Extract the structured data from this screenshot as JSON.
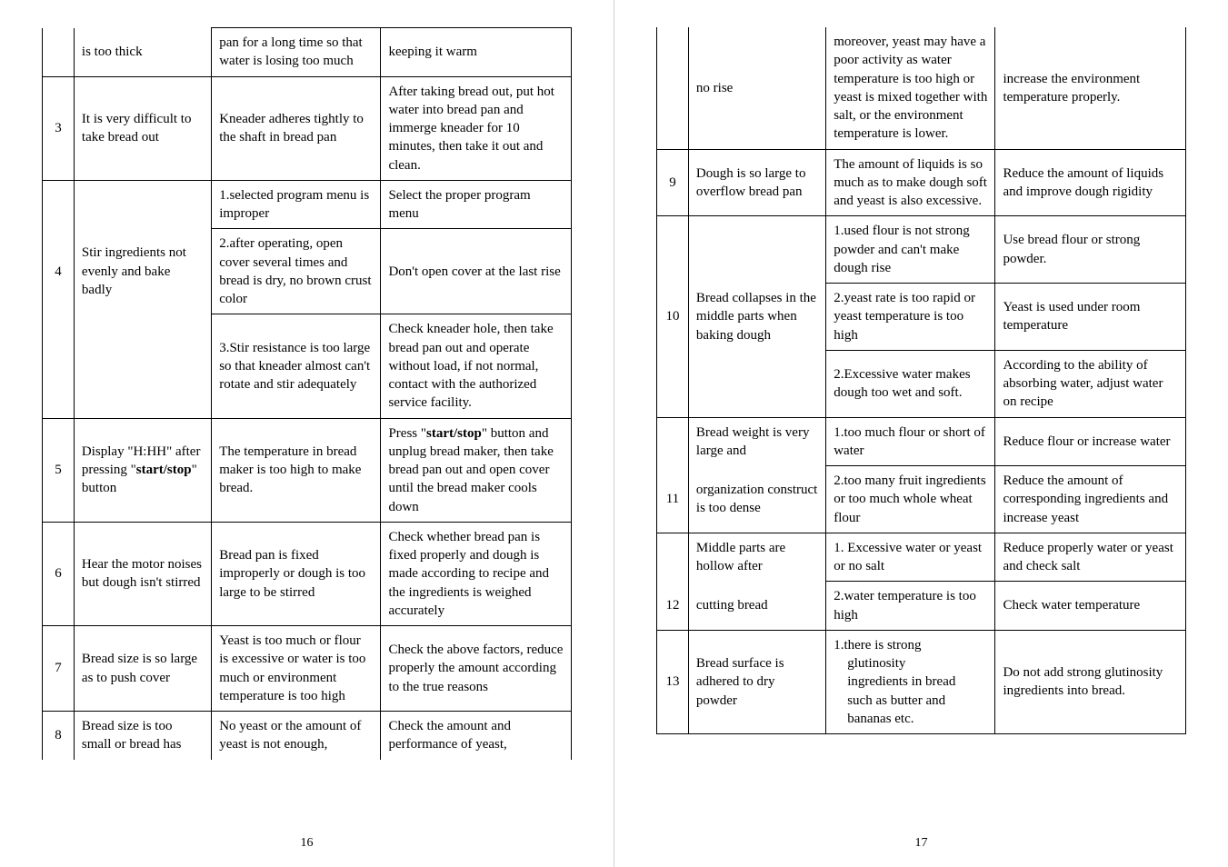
{
  "left": {
    "pageNumber": "16",
    "rows": [
      {
        "num": "",
        "problem": "is too thick",
        "cause": "pan for a long time so that water is losing too much",
        "solution": "keeping it warm",
        "numNoTop": true,
        "probNoTop": true
      },
      {
        "num": "3",
        "problem": "It is very difficult to take bread out",
        "cause": "Kneader adheres tightly to the shaft in bread pan",
        "solution": "After taking bread out, put hot water into bread pan and immerge kneader for 10 minutes, then take it out and clean."
      },
      {
        "num": "",
        "problem": "",
        "cause": "1.selected program menu is improper",
        "solution": "Select the proper program menu",
        "numNoBottom": true,
        "probNoBottom": true
      },
      {
        "num": "4",
        "problem": "Stir ingredients not evenly and bake badly",
        "cause": "2.after operating, open cover several times and bread is dry, no brown crust color",
        "solution": "Don't open cover at the last rise",
        "numNoTop": true,
        "numNoBottom": true,
        "probNoTop": true,
        "probNoBottom": true
      },
      {
        "num": "",
        "problem": "",
        "cause": "3.Stir resistance is too large so that kneader almost can't rotate and stir adequately",
        "solution": "Check kneader hole, then take bread pan out and operate without load, if not normal, contact with the authorized service facility.",
        "numNoTop": true,
        "probNoTop": true
      },
      {
        "num": "5",
        "problemHtml": "Display \"H:HH\" after pressing \"<b>start/stop</b>\" button",
        "cause": "The temperature in bread maker is too high to make bread.",
        "solutionHtml": "Press \"<b>start/stop</b>\" button and unplug bread maker, then take bread pan out and open cover until the bread maker cools down"
      },
      {
        "num": "6",
        "problem": "Hear the motor noises but dough isn't stirred",
        "cause": "Bread pan is fixed improperly or dough is too large to be stirred",
        "solution": "Check whether bread pan is fixed properly and dough is made according to recipe and the ingredients is weighed accurately"
      },
      {
        "num": "7",
        "problem": "Bread size is so large as to push cover",
        "cause": "Yeast is too much or flour is excessive or water is too much or environment temperature is too high",
        "solution": "Check the above factors, reduce properly the amount according to the true reasons"
      },
      {
        "num": "8",
        "problem": "Bread size is too small or bread has",
        "cause": "No yeast or the amount of yeast is not enough,",
        "solution": "Check the amount and performance of yeast,",
        "numNoBottom": true,
        "probNoBottom": true,
        "causeNoBottom": true,
        "solNoBottom": true
      }
    ]
  },
  "right": {
    "pageNumber": "17",
    "rows": [
      {
        "num": "",
        "problem": "no rise",
        "cause": "moreover, yeast may have a poor activity as water temperature is too high or yeast is mixed together with salt, or the environment temperature is lower.",
        "solution": "increase the environment temperature properly.",
        "numNoTop": true,
        "probNoTop": true,
        "causeNoTop": true,
        "solNoTop": true
      },
      {
        "num": "9",
        "problem": "Dough is so large to overflow bread pan",
        "cause": "The amount of liquids is so much as to make dough soft and yeast is also excessive.",
        "solution": "Reduce the amount of liquids and improve dough rigidity"
      },
      {
        "num": "",
        "problem": "",
        "cause": "1.used flour is not strong powder and can't make dough rise",
        "solution": "Use bread flour or strong powder.",
        "numNoBottom": true,
        "probNoBottom": true
      },
      {
        "num": "10",
        "problem": "Bread collapses in the middle parts when baking dough",
        "cause": "2.yeast rate is too rapid or yeast temperature is too high",
        "solution": "Yeast is used under room temperature",
        "numNoTop": true,
        "numNoBottom": true,
        "probNoTop": true,
        "probNoBottom": true
      },
      {
        "num": "",
        "problem": "",
        "cause": "2.Excessive water makes dough too wet and soft.",
        "solution": "According to the ability of absorbing water, adjust water on recipe",
        "numNoTop": true,
        "probNoTop": true
      },
      {
        "num": "",
        "problem": "Bread weight is very large and",
        "cause": "1.too much flour or short of water",
        "solution": "Reduce flour or increase water",
        "numNoBottom": true,
        "probNoBottom": true
      },
      {
        "num": "11",
        "problem": "organization construct is too dense",
        "cause": "2.too many fruit ingredients or too much whole wheat flour",
        "solution": "Reduce the amount of corresponding ingredients and increase yeast",
        "numNoTop": true,
        "probNoTop": true
      },
      {
        "num": "",
        "problem": "Middle parts are hollow after",
        "cause": "1. Excessive water or yeast or no salt",
        "solution": "Reduce properly water or yeast and check salt",
        "numNoBottom": true,
        "probNoBottom": true
      },
      {
        "num": "12",
        "problem": "cutting bread",
        "cause": "2.water temperature is too high",
        "solution": "Check water temperature",
        "numNoTop": true,
        "probNoTop": true
      },
      {
        "num": "13",
        "problem": "Bread surface is adhered to dry powder",
        "causeHtml": "1.there is strong<br>&nbsp;&nbsp;&nbsp;&nbsp;glutinosity<br>&nbsp;&nbsp;&nbsp;&nbsp;ingredients in bread<br>&nbsp;&nbsp;&nbsp;&nbsp;such as butter and<br>&nbsp;&nbsp;&nbsp;&nbsp;bananas etc.",
        "solution": "Do not add strong glutinosity ingredients into bread."
      }
    ]
  }
}
